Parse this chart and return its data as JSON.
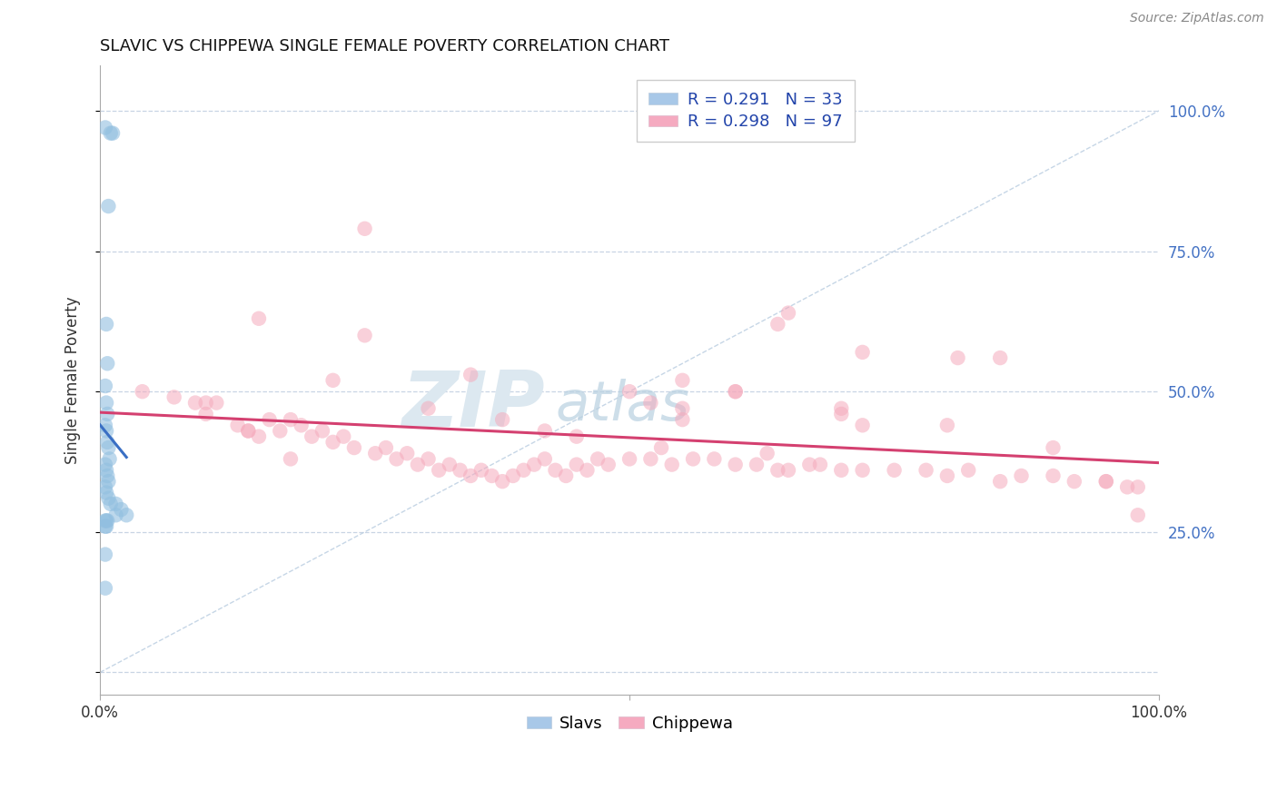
{
  "title": "SLAVIC VS CHIPPEWA SINGLE FEMALE POVERTY CORRELATION CHART",
  "source_text": "Source: ZipAtlas.com",
  "ylabel": "Single Female Poverty",
  "legend_slavs_R": 0.291,
  "legend_slavs_N": 33,
  "legend_slavs_label": "Slavs",
  "legend_chippewa_R": 0.298,
  "legend_chippewa_N": 97,
  "legend_chippewa_label": "Chippewa",
  "slavs_color": "#92bfe0",
  "chippewa_color": "#f5aabc",
  "regression_slavs_color": "#3a6fc4",
  "regression_chippewa_color": "#d44070",
  "diagonal_color": "#b8cce0",
  "background_color": "#ffffff",
  "grid_color": "#c8d4e4",
  "legend_slavs_patch": "#a8c8e8",
  "legend_chippewa_patch": "#f5aac0",
  "legend_text_color": "#2244aa",
  "right_axis_color": "#4472c4",
  "title_color": "#111111",
  "source_color": "#888888",
  "watermark_color": "#dce8f0",
  "slavs_x": [
    0.005,
    0.01,
    0.012,
    0.008,
    0.006,
    0.007,
    0.005,
    0.006,
    0.007,
    0.005,
    0.006,
    0.007,
    0.008,
    0.009,
    0.005,
    0.006,
    0.007,
    0.008,
    0.005,
    0.006,
    0.008,
    0.01,
    0.015,
    0.02,
    0.025,
    0.015,
    0.005,
    0.006,
    0.007,
    0.005,
    0.006,
    0.005,
    0.005
  ],
  "slavs_y": [
    0.97,
    0.96,
    0.96,
    0.83,
    0.62,
    0.55,
    0.51,
    0.48,
    0.46,
    0.44,
    0.43,
    0.41,
    0.4,
    0.38,
    0.37,
    0.36,
    0.35,
    0.34,
    0.33,
    0.32,
    0.31,
    0.3,
    0.3,
    0.29,
    0.28,
    0.28,
    0.27,
    0.27,
    0.27,
    0.26,
    0.26,
    0.21,
    0.15
  ],
  "chippewa_x": [
    0.04,
    0.07,
    0.09,
    0.1,
    0.11,
    0.13,
    0.14,
    0.15,
    0.16,
    0.17,
    0.18,
    0.18,
    0.19,
    0.2,
    0.21,
    0.22,
    0.23,
    0.24,
    0.25,
    0.26,
    0.27,
    0.28,
    0.29,
    0.3,
    0.31,
    0.32,
    0.33,
    0.34,
    0.35,
    0.36,
    0.37,
    0.38,
    0.39,
    0.4,
    0.41,
    0.42,
    0.43,
    0.44,
    0.45,
    0.46,
    0.47,
    0.48,
    0.5,
    0.52,
    0.53,
    0.54,
    0.55,
    0.56,
    0.58,
    0.6,
    0.62,
    0.63,
    0.64,
    0.65,
    0.67,
    0.68,
    0.7,
    0.72,
    0.75,
    0.78,
    0.8,
    0.82,
    0.85,
    0.87,
    0.9,
    0.92,
    0.95,
    0.97,
    0.98,
    0.1,
    0.14,
    0.22,
    0.31,
    0.42,
    0.55,
    0.64,
    0.72,
    0.81,
    0.55,
    0.65,
    0.72,
    0.38,
    0.45,
    0.52,
    0.6,
    0.7,
    0.8,
    0.85,
    0.9,
    0.95,
    0.98,
    0.15,
    0.25,
    0.35,
    0.5,
    0.6,
    0.7
  ],
  "chippewa_y": [
    0.5,
    0.49,
    0.48,
    0.46,
    0.48,
    0.44,
    0.43,
    0.42,
    0.45,
    0.43,
    0.45,
    0.38,
    0.44,
    0.42,
    0.43,
    0.41,
    0.42,
    0.4,
    0.79,
    0.39,
    0.4,
    0.38,
    0.39,
    0.37,
    0.38,
    0.36,
    0.37,
    0.36,
    0.35,
    0.36,
    0.35,
    0.34,
    0.35,
    0.36,
    0.37,
    0.38,
    0.36,
    0.35,
    0.37,
    0.36,
    0.38,
    0.37,
    0.38,
    0.48,
    0.4,
    0.37,
    0.45,
    0.38,
    0.38,
    0.37,
    0.37,
    0.39,
    0.36,
    0.36,
    0.37,
    0.37,
    0.36,
    0.36,
    0.36,
    0.36,
    0.35,
    0.36,
    0.34,
    0.35,
    0.35,
    0.34,
    0.34,
    0.33,
    0.33,
    0.48,
    0.43,
    0.52,
    0.47,
    0.43,
    0.47,
    0.62,
    0.44,
    0.56,
    0.52,
    0.64,
    0.57,
    0.45,
    0.42,
    0.38,
    0.5,
    0.47,
    0.44,
    0.56,
    0.4,
    0.34,
    0.28,
    0.63,
    0.6,
    0.53,
    0.5,
    0.5,
    0.46
  ],
  "xlim": [
    0.0,
    1.0
  ],
  "ylim": [
    -0.04,
    1.08
  ],
  "grid_yticks": [
    0.0,
    0.25,
    0.5,
    0.75,
    1.0
  ],
  "right_yticks": [
    0.25,
    0.5,
    0.75,
    1.0
  ],
  "right_yticklabels": [
    "25.0%",
    "50.0%",
    "75.0%",
    "100.0%"
  ],
  "xtick_positions": [
    0.0,
    0.5,
    1.0
  ],
  "xtick_labels_show": [
    "0.0%",
    "",
    "100.0%"
  ]
}
